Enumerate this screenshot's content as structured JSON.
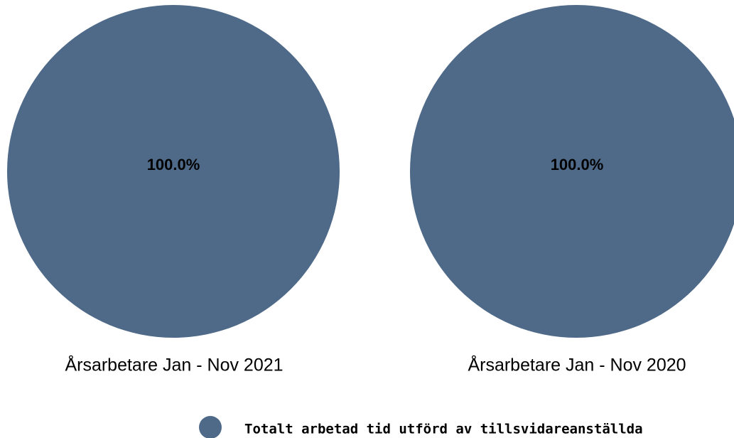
{
  "chart_data": [
    {
      "type": "pie",
      "title": "Årsarbetare Jan - Nov 2021",
      "slices": [
        {
          "label": "Totalt arbetad tid utförd av tillsvidareanställda",
          "value": 100.0,
          "display": "100.0%"
        }
      ]
    },
    {
      "type": "pie",
      "title": "Årsarbetare Jan - Nov 2020",
      "slices": [
        {
          "label": "Totalt arbetad tid utförd av tillsvidareanställda",
          "value": 100.0,
          "display": "100.0%"
        }
      ]
    }
  ],
  "legend": {
    "placement": "bottom-center",
    "items": [
      {
        "label": "Totalt arbetad tid utförd av tillsvidareanställda",
        "color": "#4f6a89"
      }
    ]
  },
  "colors": {
    "slice": "#4f6a89"
  }
}
